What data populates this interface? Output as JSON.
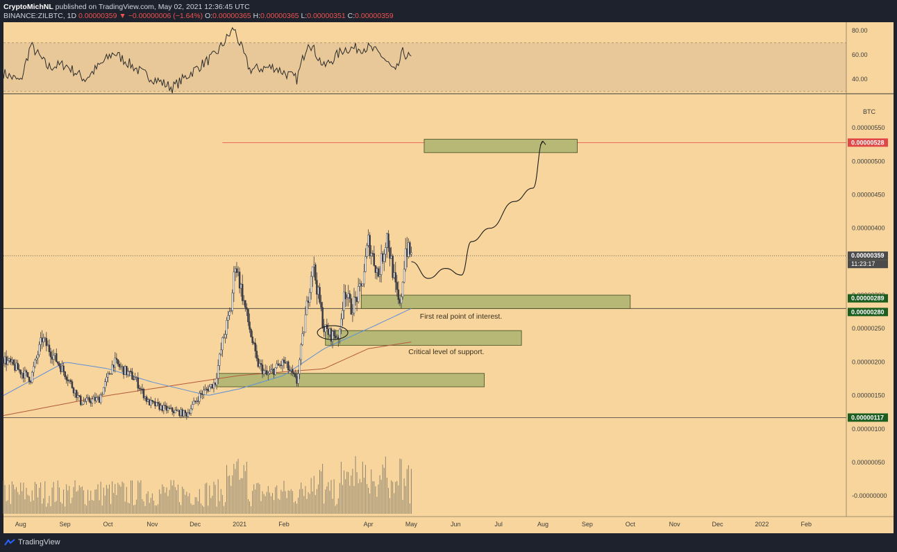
{
  "header": {
    "author": "CryptoMichNL",
    "published": "published on TradingView.com, May 02, 2021 12:36:45 UTC",
    "symbol": "BINANCE:ZILBTC, 1D",
    "last": "0.00000359",
    "change_arrow": "▼",
    "change": "−0.00000006 (−1.64%)",
    "o_label": "O:",
    "o_value": "0.00000365",
    "h_label": "H:",
    "h_value": "0.00000365",
    "l_label": "L:",
    "l_value": "0.00000351",
    "c_label": "C:",
    "c_value": "0.00000359"
  },
  "footer": {
    "brand": "TradingView",
    "logo_icon": "tradingview-logo-icon"
  },
  "colors": {
    "background": "#f7d59c",
    "rsi_band": "#e8c898",
    "candle": "#3b3b45",
    "ma_fast": "#5b8fd9",
    "ma_slow": "#b35a3a",
    "zone_fill": "#b8b876",
    "zone_stroke": "#3e4a1e",
    "target_line": "#e04848",
    "badge_green": "#1b5e20",
    "badge_red": "#e04848",
    "badge_dark": "#4a4a4a"
  },
  "chart_data": {
    "type": "candlestick",
    "currency": "BTC",
    "x_ticks": [
      "Aug",
      "Sep",
      "Oct",
      "Nov",
      "Dec",
      "2021",
      "Feb",
      "Apr",
      "May",
      "Jun",
      "Jul",
      "Aug",
      "Sep",
      "Oct",
      "Nov",
      "Dec",
      "2022",
      "Feb"
    ],
    "x_tick_dates": [
      "2020-08-01",
      "2020-09-01",
      "2020-10-01",
      "2020-11-01",
      "2020-12-01",
      "2021-01-01",
      "2021-02-01",
      "2021-04-01",
      "2021-05-01",
      "2021-06-01",
      "2021-07-01",
      "2021-08-01",
      "2021-09-01",
      "2021-10-01",
      "2021-11-01",
      "2021-12-01",
      "2022-01-01",
      "2022-02-01"
    ],
    "x_range": [
      "2020-07-20",
      "2022-03-01"
    ],
    "y_range": [
      -3.1e-07,
      6e-06
    ],
    "y_ticks": [
      "0.00000550",
      "0.00000500",
      "0.00000450",
      "0.00000400",
      "0.00000300",
      "0.00000250",
      "0.00000200",
      "0.00000150",
      "0.00000100",
      "0.00000050",
      "-0.00000000"
    ],
    "y_tick_values": [
      5.5e-06,
      5e-06,
      4.5e-06,
      4e-06,
      3e-06,
      2.5e-06,
      2e-06,
      1.5e-06,
      1e-06,
      5e-07,
      0
    ],
    "price_levels": [
      {
        "label": "0.00000528",
        "value": 5.28e-06,
        "style": "red"
      },
      {
        "label": "0.00000359",
        "value": 3.59e-06,
        "style": "dark",
        "sub_label": "11:23:17"
      },
      {
        "label": "0.00000289",
        "value": 2.89e-06,
        "style": "green"
      },
      {
        "label": "0.00000280",
        "value": 2.8e-06,
        "style": "green"
      },
      {
        "label": "0.00000117",
        "value": 1.17e-06,
        "style": "green"
      }
    ],
    "horizontal_lines": [
      {
        "value": 5.28e-06,
        "from": "2020-12-20",
        "color": "red"
      },
      {
        "value": 2.8e-06,
        "color": "dark"
      },
      {
        "value": 1.17e-06,
        "color": "dark"
      }
    ],
    "zones": [
      {
        "from": "2021-05-10",
        "to": "2021-08-25",
        "top": 5.33e-06,
        "bottom": 5.13e-06
      },
      {
        "from": "2021-03-27",
        "to": "2021-10-01",
        "top": 3e-06,
        "bottom": 2.8e-06
      },
      {
        "from": "2021-03-02",
        "to": "2021-07-17",
        "top": 2.47e-06,
        "bottom": 2.25e-06
      },
      {
        "from": "2020-12-16",
        "to": "2021-06-21",
        "top": 1.83e-06,
        "bottom": 1.63e-06
      }
    ],
    "annotations": [
      {
        "text": "First real point of interest.",
        "date": "2021-05-07",
        "value": 2.65e-06
      },
      {
        "text": "Critical level of support.",
        "date": "2021-04-29",
        "value": 2.12e-06
      }
    ],
    "projection_path": [
      [
        "2021-05-01",
        3.5e-06
      ],
      [
        "2021-05-13",
        3.25e-06
      ],
      [
        "2021-05-25",
        3.4e-06
      ],
      [
        "2021-06-05",
        3.3e-06
      ],
      [
        "2021-06-12",
        3.8e-06
      ],
      [
        "2021-06-25",
        4e-06
      ],
      [
        "2021-07-12",
        4.4e-06
      ],
      [
        "2021-07-25",
        4.6e-06
      ],
      [
        "2021-08-01",
        5.3e-06
      ]
    ],
    "price_keypoints": [
      [
        "2020-07-20",
        2.05e-06
      ],
      [
        "2020-08-08",
        1.75e-06
      ],
      [
        "2020-08-16",
        2.35e-06
      ],
      [
        "2020-09-02",
        1.8e-06
      ],
      [
        "2020-09-12",
        1.4e-06
      ],
      [
        "2020-09-25",
        1.45e-06
      ],
      [
        "2020-10-05",
        2e-06
      ],
      [
        "2020-10-20",
        1.75e-06
      ],
      [
        "2020-10-29",
        1.4e-06
      ],
      [
        "2020-11-10",
        1.3e-06
      ],
      [
        "2020-11-25",
        1.22e-06
      ],
      [
        "2020-12-04",
        1.5e-06
      ],
      [
        "2020-12-15",
        1.7e-06
      ],
      [
        "2020-12-20",
        2.3e-06
      ],
      [
        "2020-12-26",
        2.8e-06
      ],
      [
        "2020-12-29",
        3.5e-06
      ],
      [
        "2021-01-06",
        2.7e-06
      ],
      [
        "2021-01-13",
        2e-06
      ],
      [
        "2021-01-20",
        1.8e-06
      ],
      [
        "2021-02-01",
        2e-06
      ],
      [
        "2021-02-10",
        1.7e-06
      ],
      [
        "2021-02-15",
        2.5e-06
      ],
      [
        "2021-02-21",
        3.5e-06
      ],
      [
        "2021-03-01",
        2.5e-06
      ],
      [
        "2021-03-06",
        2.4e-06
      ],
      [
        "2021-03-12",
        2.4e-06
      ],
      [
        "2021-03-15",
        3.1e-06
      ],
      [
        "2021-03-20",
        2.8e-06
      ],
      [
        "2021-03-27",
        3.1e-06
      ],
      [
        "2021-04-01",
        3.8e-06
      ],
      [
        "2021-04-08",
        3.3e-06
      ],
      [
        "2021-04-14",
        3.9e-06
      ],
      [
        "2021-04-20",
        3.1e-06
      ],
      [
        "2021-04-23",
        2.8e-06
      ],
      [
        "2021-04-27",
        3.7e-06
      ],
      [
        "2021-05-01",
        3.59e-06
      ]
    ],
    "ma_fast_keypoints": [
      [
        "2020-07-20",
        1.5e-06
      ],
      [
        "2020-09-01",
        2e-06
      ],
      [
        "2020-10-01",
        1.9e-06
      ],
      [
        "2020-11-01",
        1.7e-06
      ],
      [
        "2020-12-10",
        1.5e-06
      ],
      [
        "2021-01-01",
        1.6e-06
      ],
      [
        "2021-02-01",
        1.8e-06
      ],
      [
        "2021-03-01",
        2.2e-06
      ],
      [
        "2021-04-01",
        2.5e-06
      ],
      [
        "2021-05-01",
        2.8e-06
      ]
    ],
    "ma_slow_keypoints": [
      [
        "2020-07-20",
        1.2e-06
      ],
      [
        "2020-10-01",
        1.5e-06
      ],
      [
        "2020-12-01",
        1.7e-06
      ],
      [
        "2021-01-01",
        1.8e-06
      ],
      [
        "2021-03-01",
        1.9e-06
      ],
      [
        "2021-04-01",
        2.2e-06
      ],
      [
        "2021-05-01",
        2.3e-06
      ]
    ],
    "rsi": {
      "y_range": [
        28,
        87
      ],
      "y_ticks": [
        "80.00",
        "60.00",
        "40.00"
      ],
      "y_tick_values": [
        80,
        60,
        40
      ],
      "band": [
        30,
        70
      ],
      "keypoints": [
        [
          "2020-07-20",
          45
        ],
        [
          "2020-08-01",
          38
        ],
        [
          "2020-08-08",
          68
        ],
        [
          "2020-08-20",
          50
        ],
        [
          "2020-09-01",
          52
        ],
        [
          "2020-09-15",
          40
        ],
        [
          "2020-10-05",
          62
        ],
        [
          "2020-10-25",
          45
        ],
        [
          "2020-11-15",
          33
        ],
        [
          "2020-12-01",
          48
        ],
        [
          "2020-12-15",
          60
        ],
        [
          "2020-12-28",
          82
        ],
        [
          "2021-01-08",
          48
        ],
        [
          "2021-01-25",
          50
        ],
        [
          "2021-02-10",
          40
        ],
        [
          "2021-02-18",
          72
        ],
        [
          "2021-03-01",
          50
        ],
        [
          "2021-03-15",
          65
        ],
        [
          "2021-04-01",
          66
        ],
        [
          "2021-04-10",
          60
        ],
        [
          "2021-04-20",
          45
        ],
        [
          "2021-04-25",
          62
        ],
        [
          "2021-05-01",
          57
        ]
      ]
    }
  }
}
